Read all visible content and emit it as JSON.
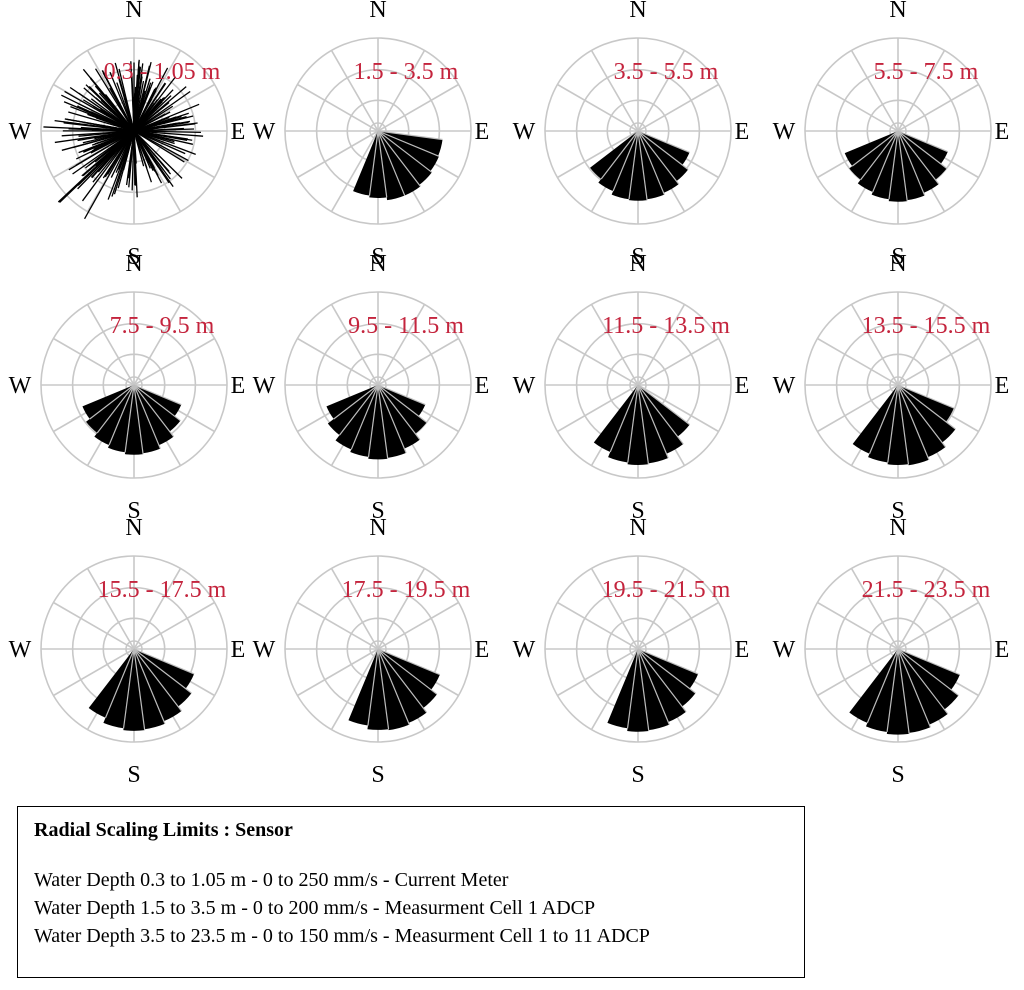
{
  "chart_data": [
    {
      "type": "polar-bar",
      "label": "0.3 - 1.05 m",
      "compass": [
        "N",
        "E",
        "S",
        "W"
      ],
      "radial_max": 250,
      "kind": "scatter-rays",
      "dir_range": [
        0,
        360
      ]
    },
    {
      "type": "polar-bar",
      "label": "1.5 - 3.5 m",
      "compass": [
        "N",
        "E",
        "S",
        "W"
      ],
      "radial_max": 200,
      "sectors": [
        {
          "dir": 105,
          "r": 0.7
        },
        {
          "dir": 120,
          "r": 0.71
        },
        {
          "dir": 135,
          "r": 0.73
        },
        {
          "dir": 150,
          "r": 0.75
        },
        {
          "dir": 165,
          "r": 0.75
        },
        {
          "dir": 180,
          "r": 0.72
        },
        {
          "dir": 195,
          "r": 0.7
        }
      ]
    },
    {
      "type": "polar-bar",
      "label": "3.5 - 5.5 m",
      "compass": [
        "N",
        "E",
        "S",
        "W"
      ],
      "radial_max": 150,
      "sectors": [
        {
          "dir": 120,
          "r": 0.6
        },
        {
          "dir": 135,
          "r": 0.68
        },
        {
          "dir": 150,
          "r": 0.72
        },
        {
          "dir": 165,
          "r": 0.74
        },
        {
          "dir": 180,
          "r": 0.75
        },
        {
          "dir": 195,
          "r": 0.74
        },
        {
          "dir": 210,
          "r": 0.7
        },
        {
          "dir": 225,
          "r": 0.65
        }
      ]
    },
    {
      "type": "polar-bar",
      "label": "5.5 - 7.5 m",
      "compass": [
        "N",
        "E",
        "S",
        "W"
      ],
      "radial_max": 150,
      "sectors": [
        {
          "dir": 120,
          "r": 0.58
        },
        {
          "dir": 135,
          "r": 0.66
        },
        {
          "dir": 150,
          "r": 0.72
        },
        {
          "dir": 165,
          "r": 0.75
        },
        {
          "dir": 180,
          "r": 0.76
        },
        {
          "dir": 195,
          "r": 0.74
        },
        {
          "dir": 210,
          "r": 0.71
        },
        {
          "dir": 225,
          "r": 0.66
        },
        {
          "dir": 240,
          "r": 0.62
        }
      ]
    },
    {
      "type": "polar-bar",
      "label": "7.5 - 9.5 m",
      "compass": [
        "N",
        "E",
        "S",
        "W"
      ],
      "radial_max": 150,
      "sectors": [
        {
          "dir": 120,
          "r": 0.55
        },
        {
          "dir": 135,
          "r": 0.63
        },
        {
          "dir": 150,
          "r": 0.7
        },
        {
          "dir": 165,
          "r": 0.74
        },
        {
          "dir": 180,
          "r": 0.75
        },
        {
          "dir": 195,
          "r": 0.73
        },
        {
          "dir": 210,
          "r": 0.7
        },
        {
          "dir": 225,
          "r": 0.65
        },
        {
          "dir": 240,
          "r": 0.6
        }
      ]
    },
    {
      "type": "polar-bar",
      "label": "9.5 - 11.5 m",
      "compass": [
        "N",
        "E",
        "S",
        "W"
      ],
      "radial_max": 150,
      "sectors": [
        {
          "dir": 120,
          "r": 0.55
        },
        {
          "dir": 135,
          "r": 0.66
        },
        {
          "dir": 150,
          "r": 0.74
        },
        {
          "dir": 165,
          "r": 0.79
        },
        {
          "dir": 180,
          "r": 0.8
        },
        {
          "dir": 195,
          "r": 0.78
        },
        {
          "dir": 210,
          "r": 0.75
        },
        {
          "dir": 225,
          "r": 0.68
        },
        {
          "dir": 240,
          "r": 0.6
        }
      ]
    },
    {
      "type": "polar-bar",
      "label": "11.5 - 13.5 m",
      "compass": [
        "N",
        "E",
        "S",
        "W"
      ],
      "radial_max": 150,
      "sectors": [
        {
          "dir": 135,
          "r": 0.7
        },
        {
          "dir": 150,
          "r": 0.8
        },
        {
          "dir": 165,
          "r": 0.85
        },
        {
          "dir": 180,
          "r": 0.86
        },
        {
          "dir": 195,
          "r": 0.84
        },
        {
          "dir": 210,
          "r": 0.78
        }
      ]
    },
    {
      "type": "polar-bar",
      "label": "13.5 - 15.5 m",
      "compass": [
        "N",
        "E",
        "S",
        "W"
      ],
      "radial_max": 150,
      "sectors": [
        {
          "dir": 120,
          "r": 0.65
        },
        {
          "dir": 135,
          "r": 0.78
        },
        {
          "dir": 150,
          "r": 0.84
        },
        {
          "dir": 165,
          "r": 0.87
        },
        {
          "dir": 180,
          "r": 0.86
        },
        {
          "dir": 195,
          "r": 0.84
        },
        {
          "dir": 210,
          "r": 0.8
        }
      ]
    },
    {
      "type": "polar-bar",
      "label": "15.5 - 17.5 m",
      "compass": [
        "N",
        "E",
        "S",
        "W"
      ],
      "radial_max": 150,
      "sectors": [
        {
          "dir": 120,
          "r": 0.7
        },
        {
          "dir": 135,
          "r": 0.78
        },
        {
          "dir": 150,
          "r": 0.84
        },
        {
          "dir": 165,
          "r": 0.87
        },
        {
          "dir": 180,
          "r": 0.88
        },
        {
          "dir": 195,
          "r": 0.86
        },
        {
          "dir": 210,
          "r": 0.8
        }
      ]
    },
    {
      "type": "polar-bar",
      "label": "17.5 - 19.5 m",
      "compass": [
        "N",
        "E",
        "S",
        "W"
      ],
      "radial_max": 150,
      "sectors": [
        {
          "dir": 120,
          "r": 0.72
        },
        {
          "dir": 135,
          "r": 0.8
        },
        {
          "dir": 150,
          "r": 0.86
        },
        {
          "dir": 165,
          "r": 0.88
        },
        {
          "dir": 180,
          "r": 0.87
        },
        {
          "dir": 195,
          "r": 0.83
        }
      ]
    },
    {
      "type": "polar-bar",
      "label": "19.5 - 21.5 m",
      "compass": [
        "N",
        "E",
        "S",
        "W"
      ],
      "radial_max": 150,
      "sectors": [
        {
          "dir": 120,
          "r": 0.7
        },
        {
          "dir": 135,
          "r": 0.78
        },
        {
          "dir": 150,
          "r": 0.85
        },
        {
          "dir": 165,
          "r": 0.88
        },
        {
          "dir": 180,
          "r": 0.89
        },
        {
          "dir": 195,
          "r": 0.86
        }
      ]
    },
    {
      "type": "polar-bar",
      "label": "21.5 - 23.5 m",
      "compass": [
        "N",
        "E",
        "S",
        "W"
      ],
      "radial_max": 150,
      "sectors": [
        {
          "dir": 120,
          "r": 0.72
        },
        {
          "dir": 135,
          "r": 0.82
        },
        {
          "dir": 150,
          "r": 0.88
        },
        {
          "dir": 165,
          "r": 0.91
        },
        {
          "dir": 180,
          "r": 0.92
        },
        {
          "dir": 195,
          "r": 0.9
        },
        {
          "dir": 210,
          "r": 0.86
        }
      ]
    }
  ],
  "colors": {
    "bars": "#000000",
    "grid": "#c8c8c8",
    "divider": "#bdbdbd",
    "range_label": "#c4243d",
    "compass_text": "#000000"
  },
  "legend": {
    "title": "Radial Scaling Limits : Sensor",
    "lines": [
      "Water Depth 0.3 to 1.05 m - 0 to 250 mm/s  - Current Meter",
      "Water Depth 1.5 to 3.5 m - 0 to 200 mm/s - Measurment Cell 1 ADCP",
      "Water Depth 3.5 to 23.5 m - 0 to 150 mm/s - Measurment Cell 1 to 11 ADCP"
    ]
  }
}
